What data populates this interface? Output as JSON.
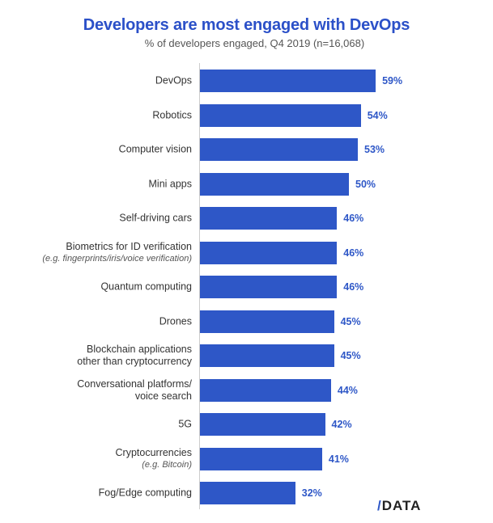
{
  "chart_data": {
    "type": "bar",
    "orientation": "horizontal",
    "title": "Developers are most engaged with DevOps",
    "subtitle": "% of developers engaged, Q4 2019 (n=16,068)",
    "categories": [
      {
        "label": "DevOps",
        "note": ""
      },
      {
        "label": "Robotics",
        "note": ""
      },
      {
        "label": "Computer vision",
        "note": ""
      },
      {
        "label": "Mini apps",
        "note": ""
      },
      {
        "label": "Self-driving cars",
        "note": ""
      },
      {
        "label": "Biometrics for ID verification",
        "note": "(e.g. fingerprints/iris/voice verification)"
      },
      {
        "label": "Quantum computing",
        "note": ""
      },
      {
        "label": "Drones",
        "note": ""
      },
      {
        "label": "Blockchain applications\nother than cryptocurrency",
        "note": ""
      },
      {
        "label": "Conversational platforms/\nvoice search",
        "note": ""
      },
      {
        "label": "5G",
        "note": ""
      },
      {
        "label": "Cryptocurrencies",
        "note": "(e.g. Bitcoin)"
      },
      {
        "label": "Fog/Edge computing",
        "note": ""
      }
    ],
    "values": [
      59,
      54,
      53,
      50,
      46,
      46,
      46,
      45,
      45,
      44,
      42,
      41,
      32
    ],
    "value_labels": [
      "59%",
      "54%",
      "53%",
      "50%",
      "46%",
      "46%",
      "46%",
      "45%",
      "45%",
      "44%",
      "42%",
      "41%",
      "32%"
    ],
    "xlim": [
      0,
      100
    ],
    "grid": false,
    "bar_color": "#2e57c7"
  },
  "logo": {
    "slash": "/",
    "text": "DATA"
  }
}
